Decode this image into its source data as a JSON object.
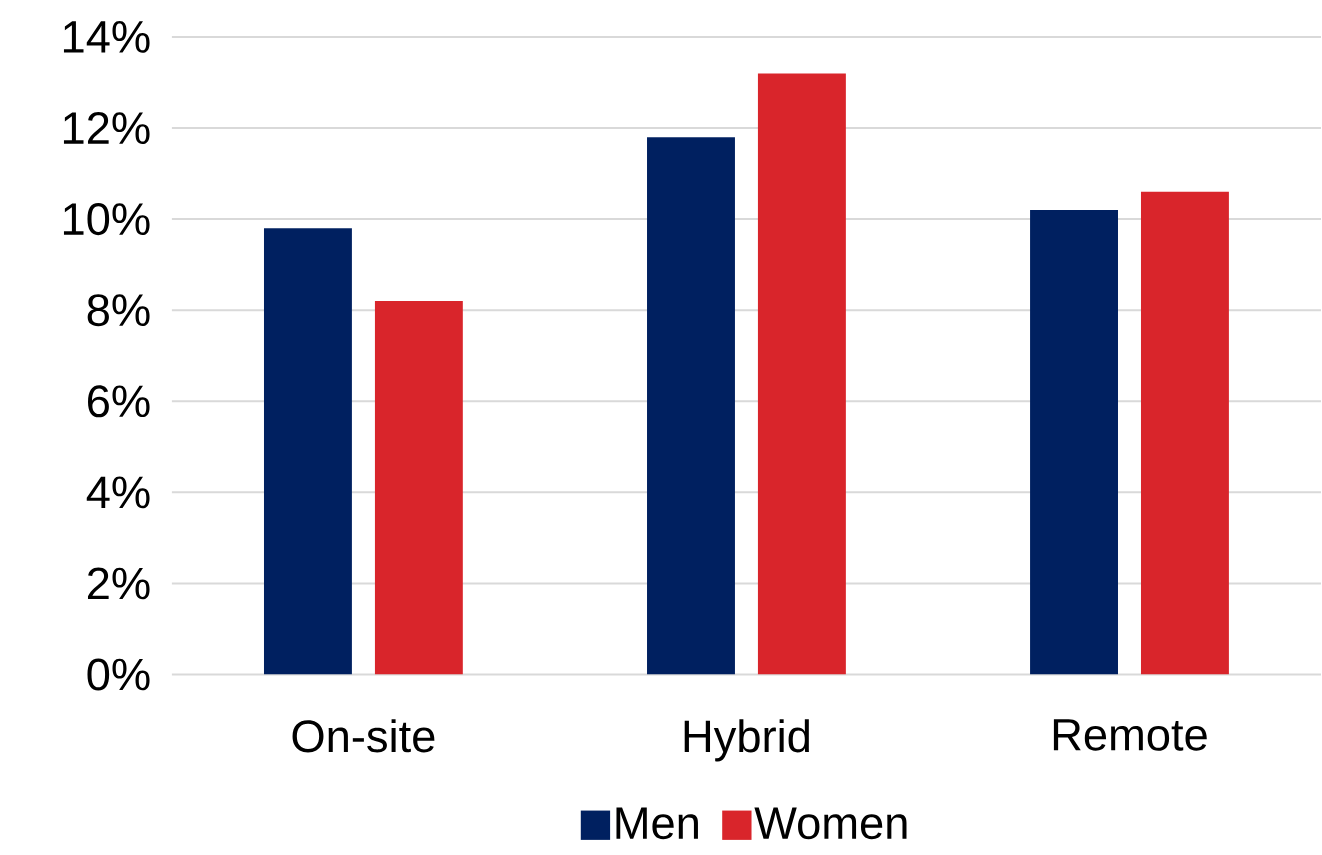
{
  "chart_data": {
    "type": "bar",
    "categories": [
      "On-site",
      "Hybrid",
      "Remote"
    ],
    "series": [
      {
        "name": "Men",
        "color": "#002060",
        "values": [
          9.8,
          11.8,
          10.2
        ]
      },
      {
        "name": "Women",
        "color": "#d9252b",
        "values": [
          8.2,
          13.2,
          10.6
        ]
      }
    ],
    "ylim": [
      0,
      14
    ],
    "yticks": [
      {
        "value": 0,
        "label": "0%"
      },
      {
        "value": 2,
        "label": "2%"
      },
      {
        "value": 4,
        "label": "4%"
      },
      {
        "value": 6,
        "label": "6%"
      },
      {
        "value": 8,
        "label": "8%"
      },
      {
        "value": 10,
        "label": "10%"
      },
      {
        "value": 12,
        "label": "12%"
      },
      {
        "value": 14,
        "label": "14%"
      }
    ],
    "grid": "y",
    "legend": "bottom"
  }
}
